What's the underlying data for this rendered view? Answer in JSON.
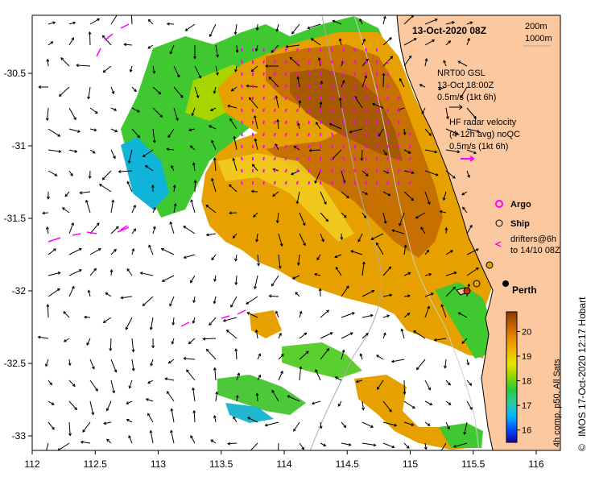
{
  "title": "13-Oct-2020 08Z",
  "depth_legend": [
    "200m",
    "1000m"
  ],
  "model_current": {
    "name": "NRT00 GSL",
    "time": "13-Oct 18:00Z",
    "scale": "0.5m/s (1kt 6h)"
  },
  "radar": {
    "line1": "HF radar velocity",
    "line2": "(4-12h avg) noQC",
    "scale": "0.5m/s (1kt 6h)"
  },
  "markers": {
    "argo": "Argo",
    "ship": "Ship",
    "drifters_line1": "drifters@6h",
    "drifters_line2": "to 14/10 08Z"
  },
  "city": "Perth",
  "colorbar": {
    "ticks": [
      "16",
      "17",
      "18",
      "19",
      "20"
    ],
    "label": "4h comp. p50, All Sats",
    "vmin": 15.5,
    "vmax": 20.8,
    "stops": [
      "#1a0099",
      "#0050ff",
      "#00b4ff",
      "#33c8a0",
      "#22cc44",
      "#8fd400",
      "#e6e600",
      "#f2b800",
      "#e68a00",
      "#c06000",
      "#8a3a00"
    ]
  },
  "credit": "IMOS 17-Oct-2020 12:17 Hobart",
  "copyright": "©",
  "axes": {
    "x_ticks": [
      "112",
      "112.5",
      "113",
      "113.5",
      "114",
      "114.5",
      "115",
      "115.5",
      "116"
    ],
    "y_ticks": [
      "-30.5",
      "-31",
      "-31.5",
      "-32",
      "-32.5",
      "-33"
    ]
  },
  "colors": {
    "land": "#fbc8a0",
    "argo": "#ff00ff",
    "radar": "#ff00ff",
    "ship_fill": "#e8a000",
    "ship_dark": "#cc3300"
  }
}
